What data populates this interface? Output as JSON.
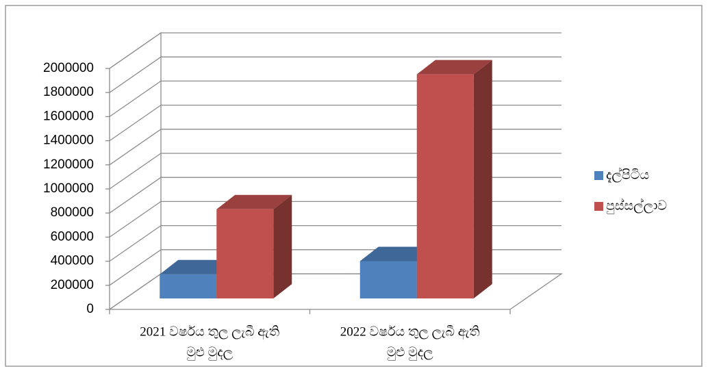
{
  "chart_data": {
    "type": "bar3d",
    "categories": [
      [
        "2021 වර්ෂය තුල ලැබී ඇති",
        "මුළු මුදල"
      ],
      [
        "2022 වර්ෂය තුල ලැබී ඇති",
        "මුළු මුදල"
      ]
    ],
    "series": [
      {
        "name": "දැල්පිටිය",
        "color": "#4f81bd",
        "values": [
          200000,
          310000
        ]
      },
      {
        "name": "පුස්සල්ලාව",
        "color": "#c0504d",
        "values": [
          740000,
          1860000
        ]
      }
    ],
    "ylim": [
      0,
      2000000
    ],
    "yticks": [
      0,
      200000,
      400000,
      600000,
      800000,
      1000000,
      1200000,
      1400000,
      1600000,
      1800000,
      2000000
    ],
    "grid": true,
    "legend": "right"
  }
}
